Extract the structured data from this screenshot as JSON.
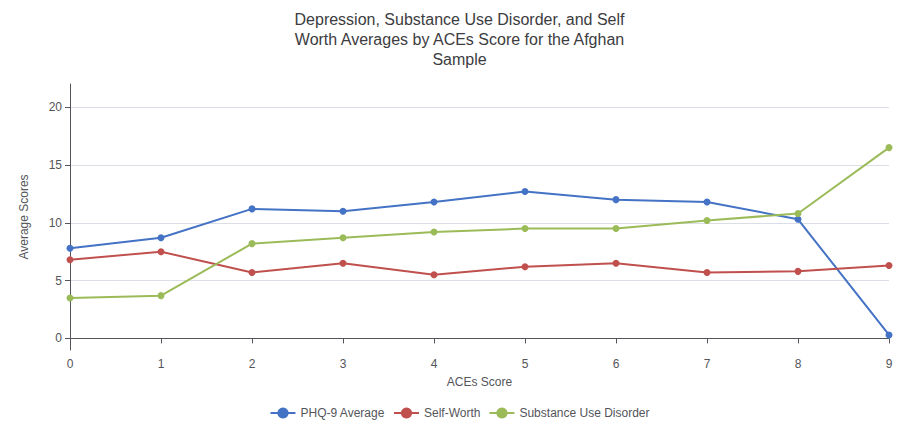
{
  "chart_data": {
    "type": "line",
    "title": "Depression, Substance Use Disorder, and Self\nWorth Averages by ACEs Score for the Afghan\nSample",
    "x_label": "ACEs Score",
    "y_label": "Average Scores",
    "x": [
      0,
      1,
      2,
      3,
      4,
      5,
      6,
      7,
      8,
      9
    ],
    "series": [
      {
        "name": "PHQ-9 Average",
        "color": "#4472C4",
        "marker": "circle",
        "values": [
          7.8,
          8.7,
          11.2,
          11.0,
          11.8,
          12.7,
          12.0,
          11.8,
          10.3,
          0.3
        ]
      },
      {
        "name": "Self-Worth",
        "color": "#C0504D",
        "marker": "circle",
        "values": [
          6.8,
          7.5,
          5.7,
          6.5,
          5.5,
          6.2,
          6.5,
          5.7,
          5.8,
          6.3
        ]
      },
      {
        "name": "Substance Use Disorder",
        "color": "#9BBB59",
        "marker": "circle",
        "values": [
          3.5,
          3.7,
          8.2,
          8.7,
          9.2,
          9.5,
          9.5,
          10.2,
          10.8,
          16.5
        ]
      }
    ],
    "xlim": [
      0,
      9
    ],
    "xticks": [
      0,
      1,
      2,
      3,
      4,
      5,
      6,
      7,
      8,
      9
    ],
    "ylim": [
      -1,
      22
    ],
    "yticks": [
      0,
      5,
      10,
      15,
      20
    ],
    "grid": true,
    "legend": "bottom"
  }
}
